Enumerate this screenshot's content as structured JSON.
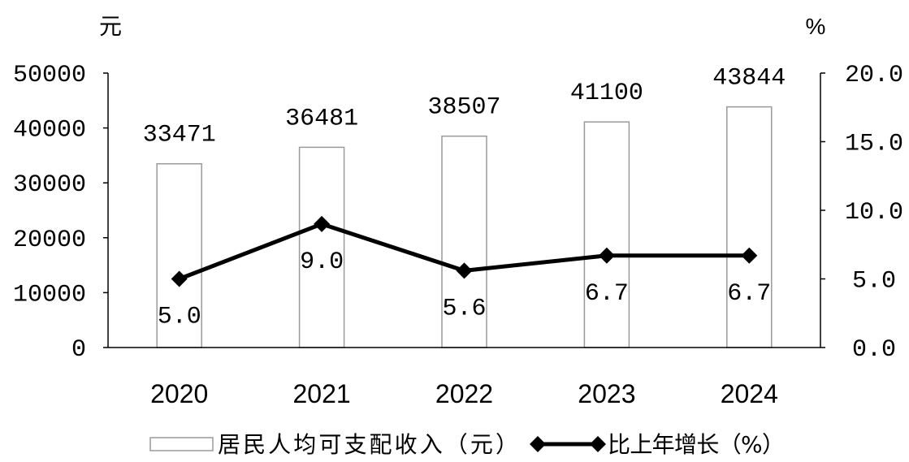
{
  "chart_data": {
    "type": "bar",
    "categories": [
      "2020",
      "2021",
      "2022",
      "2023",
      "2024"
    ],
    "series": [
      {
        "name": "居民人均可支配收入（元）",
        "type": "bar",
        "axis": "left",
        "values": [
          33471,
          36481,
          38507,
          41100,
          43844
        ],
        "data_labels": [
          "33471",
          "36481",
          "38507",
          "41100",
          "43844"
        ]
      },
      {
        "name": "比上年增长（%）",
        "type": "line",
        "axis": "right",
        "marker": "diamond",
        "values": [
          5.0,
          9.0,
          5.6,
          6.7,
          6.7
        ],
        "data_labels": [
          "5.0",
          "9.0",
          "5.6",
          "6.7",
          "6.7"
        ]
      }
    ],
    "yaxis": {
      "label": "元",
      "min": 0,
      "max": 50000,
      "ticks": [
        "0",
        "10000",
        "20000",
        "30000",
        "40000",
        "50000"
      ]
    },
    "y2axis": {
      "label": "%",
      "min": 0,
      "max": 20,
      "ticks": [
        "0.0",
        "5.0",
        "10.0",
        "15.0",
        "20.0"
      ]
    },
    "grid": false,
    "legend": "bottom",
    "colors": {
      "bar_fill": "#ffffff",
      "bar_stroke": "#9a9a9a",
      "line": "#000000",
      "axis": "#000000",
      "text": "#000000"
    }
  }
}
